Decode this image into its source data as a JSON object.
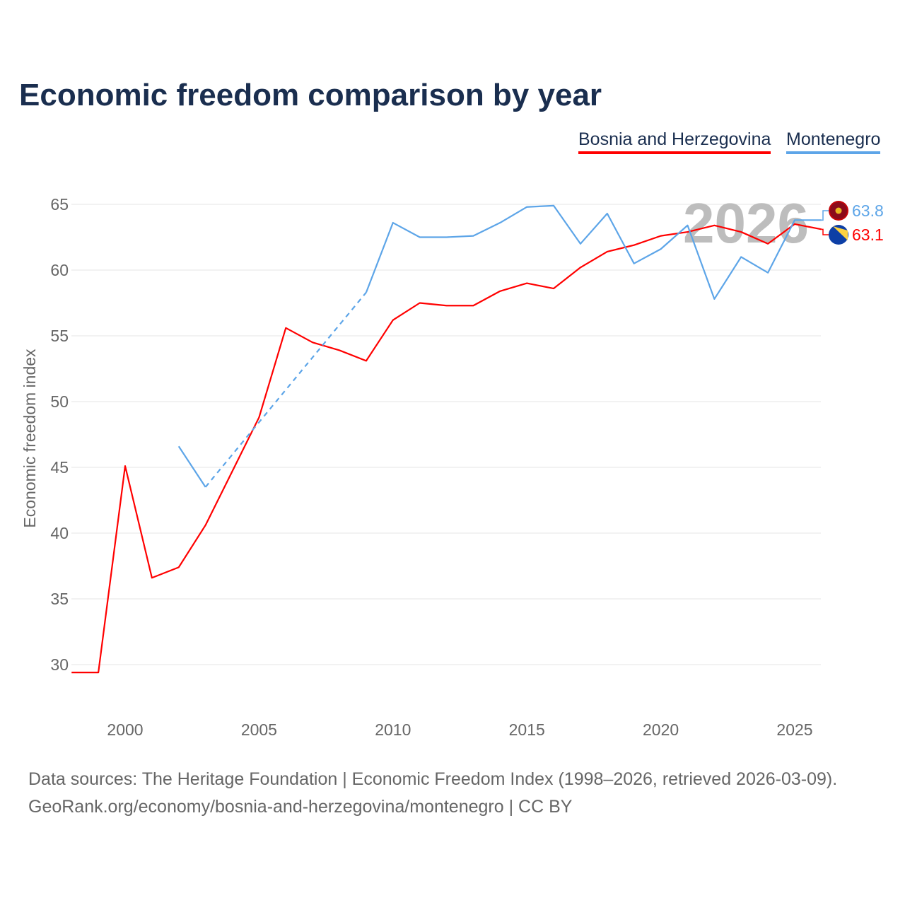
{
  "chart_data": {
    "type": "line",
    "title": "Economic freedom comparison by year",
    "xlabel": "",
    "ylabel": "Economic freedom index",
    "xlim": [
      1998,
      2026
    ],
    "ylim": [
      27.5,
      66.5
    ],
    "yticks": [
      30,
      35,
      40,
      45,
      50,
      55,
      60,
      65
    ],
    "xticks": [
      2000,
      2005,
      2010,
      2015,
      2020,
      2025
    ],
    "grid": true,
    "legend": "top-right",
    "watermark_year": "2026",
    "series": [
      {
        "name": "Bosnia and Herzegovina",
        "color": "#ff0000",
        "end_label": "63.1",
        "x": [
          1998,
          1999,
          2000,
          2001,
          2002,
          2003,
          2004,
          2005,
          2006,
          2007,
          2008,
          2009,
          2010,
          2011,
          2012,
          2013,
          2014,
          2015,
          2016,
          2017,
          2018,
          2019,
          2020,
          2021,
          2022,
          2023,
          2024,
          2025,
          2026
        ],
        "y": [
          29.4,
          29.4,
          45.1,
          36.6,
          37.4,
          40.6,
          44.7,
          48.8,
          55.6,
          54.5,
          53.9,
          53.1,
          56.2,
          57.5,
          57.3,
          57.3,
          58.4,
          59.0,
          58.6,
          60.2,
          61.4,
          61.9,
          62.6,
          62.9,
          63.4,
          62.9,
          62.0,
          63.5,
          63.1
        ]
      },
      {
        "name": "Montenegro",
        "color": "#5da5e8",
        "end_label": "63.8",
        "x": [
          2002,
          2003,
          2009,
          2010,
          2011,
          2012,
          2013,
          2014,
          2015,
          2016,
          2017,
          2018,
          2019,
          2020,
          2021,
          2022,
          2023,
          2024,
          2025,
          2026
        ],
        "y": [
          46.6,
          43.5,
          58.3,
          63.6,
          62.5,
          62.5,
          62.6,
          63.6,
          64.8,
          64.9,
          62.0,
          64.3,
          60.5,
          61.6,
          63.4,
          57.8,
          61.0,
          59.8,
          63.8,
          63.8
        ],
        "gap_after_x": 2003
      }
    ]
  },
  "footer": {
    "sources": "Data sources: The Heritage Foundation | Economic Freedom Index (1998–2026, retrieved 2026-03-09).",
    "credit": "GeoRank.org/economy/bosnia-and-herzegovina/montenegro | CC BY"
  }
}
